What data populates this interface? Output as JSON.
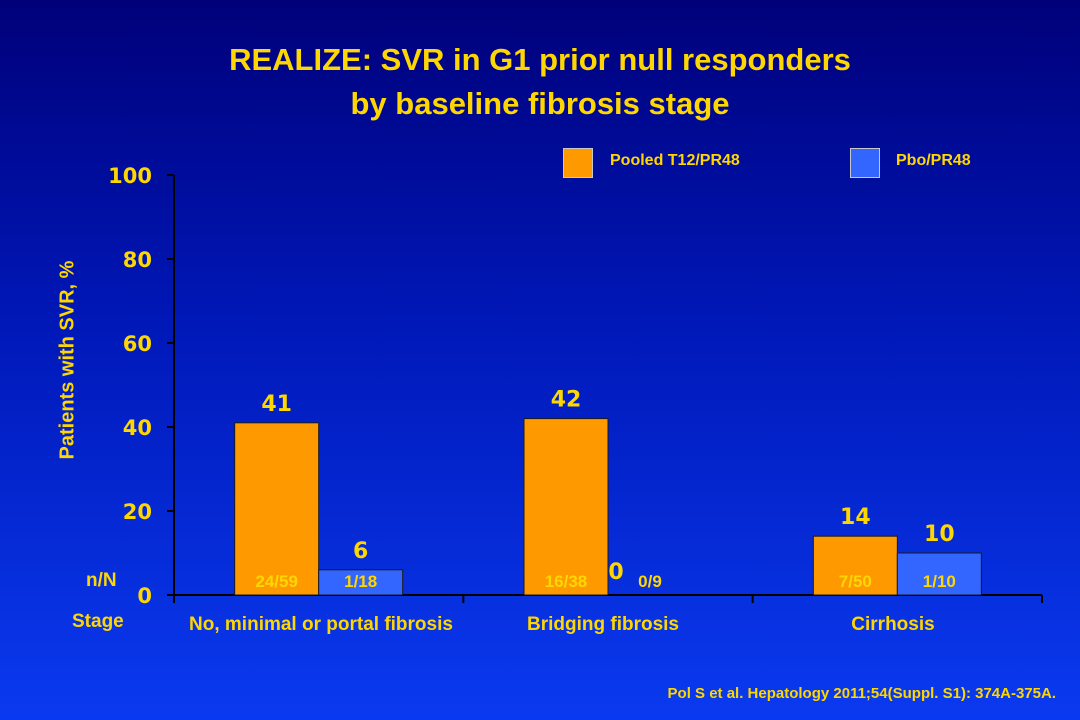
{
  "title_line1": "REALIZE: SVR in G1 prior null responders",
  "title_line2": "by baseline fibrosis stage",
  "citation": "Pol S et al. Hepatology 2011;54(Suppl. S1): 374A-375A.",
  "row_labels": {
    "n_over_n": "n/N",
    "stage": "Stage"
  },
  "colors": {
    "series1": "#ff9900",
    "series2": "#3366ff",
    "text": "#ffd700",
    "axis": "#000000"
  },
  "chart_data": {
    "type": "bar",
    "title": "REALIZE: SVR in G1 prior null responders by baseline fibrosis stage",
    "ylabel": "Patients with SVR, %",
    "xlabel": "",
    "ylim": [
      0,
      100
    ],
    "yticks": [
      0,
      20,
      40,
      60,
      80,
      100
    ],
    "grid": false,
    "legend_position": "top-right",
    "categories": [
      "No, minimal or portal fibrosis",
      "Bridging fibrosis",
      "Cirrhosis"
    ],
    "series": [
      {
        "name": "Pooled T12/PR48",
        "values": [
          41,
          42,
          14
        ],
        "n_over_n": [
          "24/59",
          "16/38",
          "7/50"
        ]
      },
      {
        "name": "Pbo/PR48",
        "values": [
          6,
          0,
          10
        ],
        "n_over_n": [
          "1/18",
          "0/9",
          "1/10"
        ]
      }
    ]
  }
}
